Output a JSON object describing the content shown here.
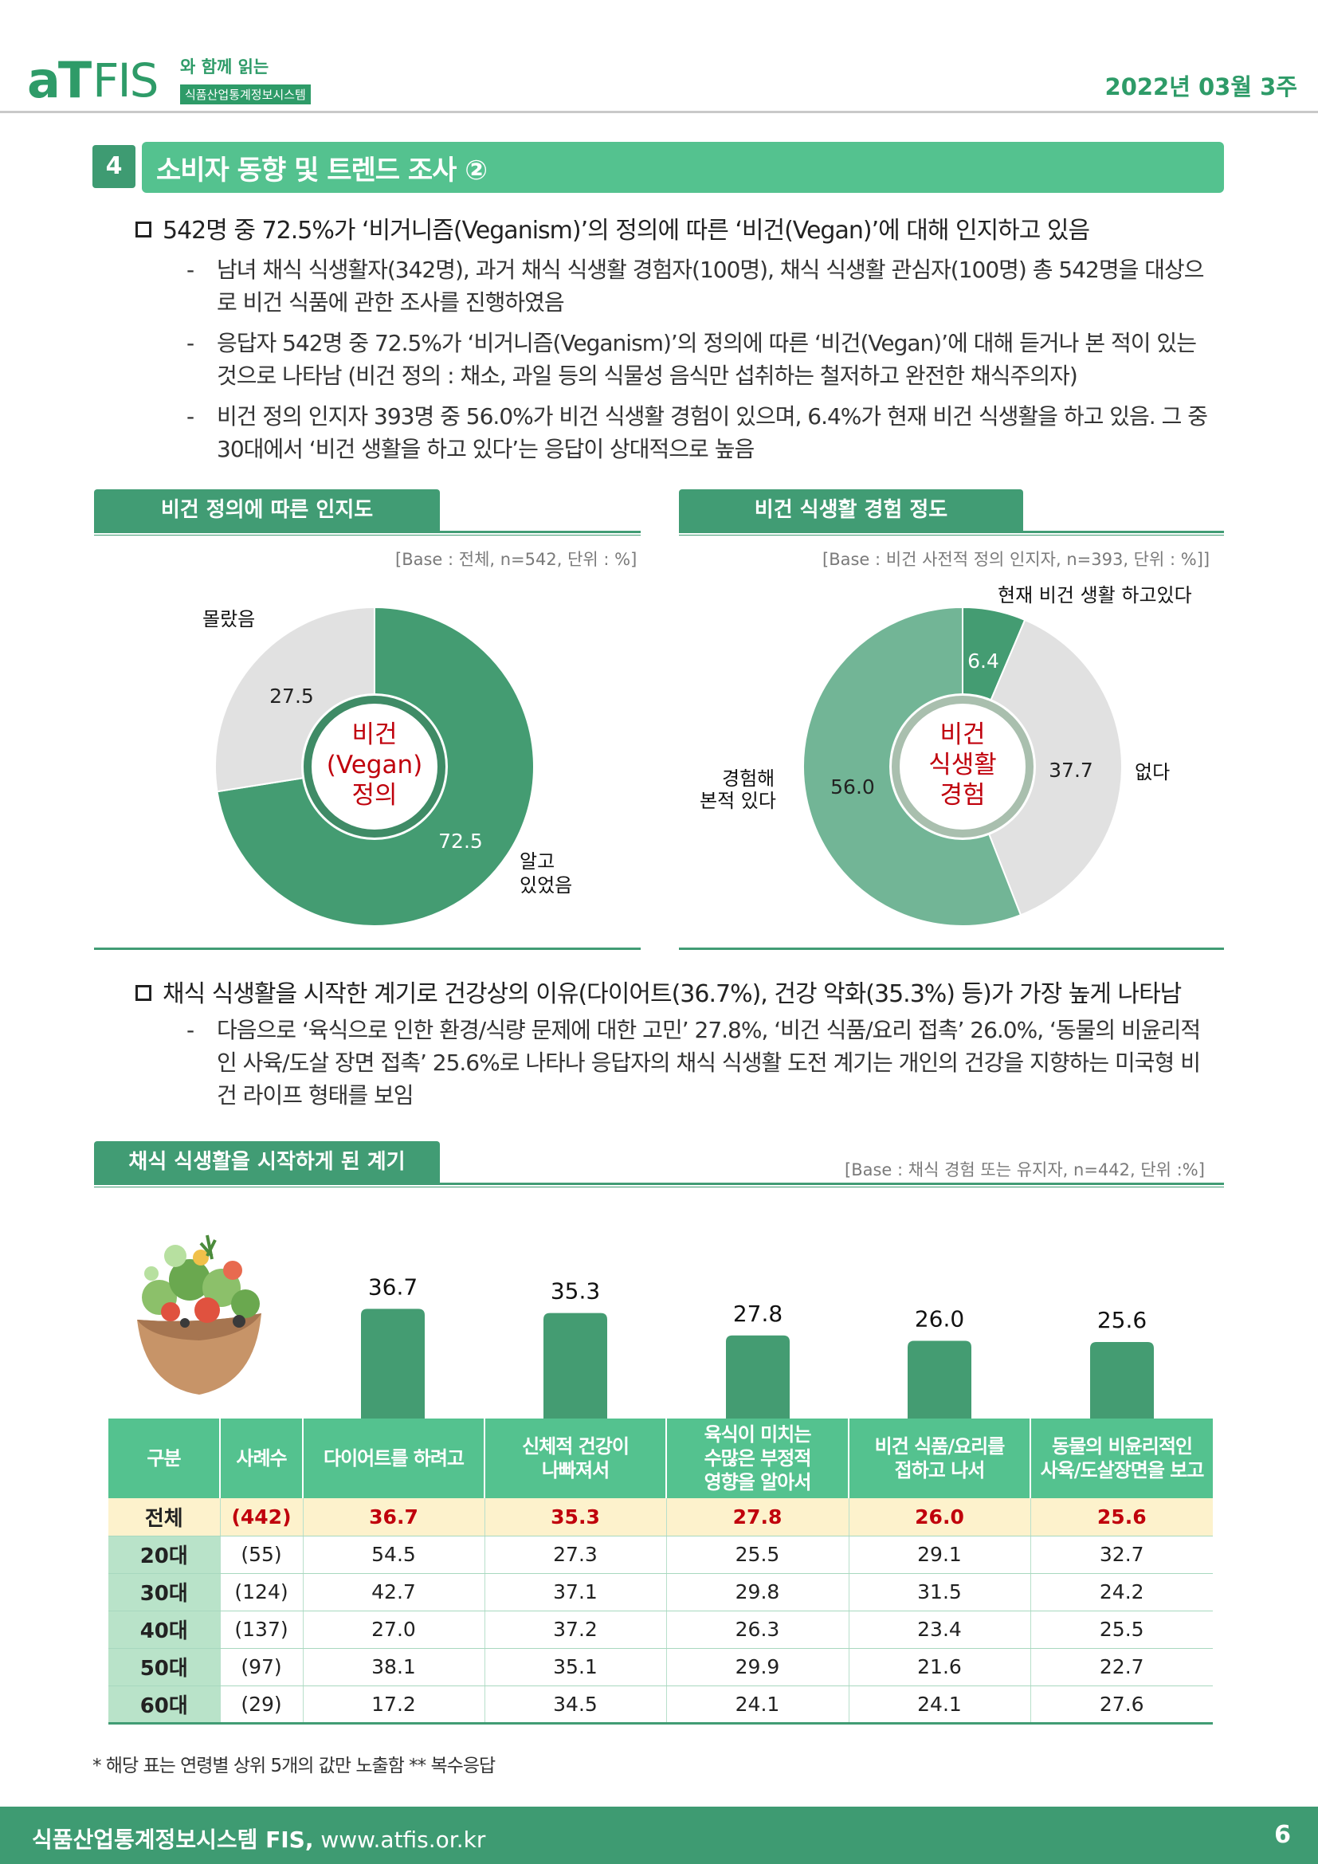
{
  "header": {
    "logo_main": "aT",
    "logo_fis": "FIS",
    "logo_with": "와 함께 읽는",
    "logo_subtitle": "식품산업통계정보시스템",
    "issue_date": "2022년 03월 3주"
  },
  "section": {
    "number": "4",
    "title": "소비자 동향 및 트렌드 조사 ②"
  },
  "bullet1": {
    "heading": "542명 중 72.5%가 ‘비거니즘(Veganism)’의 정의에 따른 ‘비건(Vegan)’에 대해 인지하고 있음",
    "items": [
      "남녀 채식 식생활자(342명), 과거 채식 식생활 경험자(100명), 채식 식생활 관심자(100명) 총 542명을 대상으로 비건 식품에 관한 조사를 진행하였음",
      "응답자 542명 중 72.5%가 ‘비거니즘(Veganism)’의 정의에 따른 ‘비건(Vegan)’에 대해 듣거나 본 적이 있는 것으로 나타남 (비건 정의 : 채소, 과일 등의 식물성 음식만 섭취하는 철저하고 완전한 채식주의자)",
      "비건 정의 인지자 393명 중 56.0%가 비건 식생활 경험이 있으며, 6.4%가 현재 비건 식생활을 하고 있음. 그 중 30대에서 ‘비건 생활을 하고 있다’는 응답이 상대적으로 높음"
    ]
  },
  "chart_left": {
    "tab": "비건 정의에 따른 인지도",
    "base": "[Base : 전체, n=542, 단위 : %]",
    "center_text": [
      "비건",
      "(Vegan)",
      "정의"
    ],
    "label_known_1": "알고",
    "label_known_2": "있었음",
    "label_unknown": "몰랐음"
  },
  "chart_right": {
    "tab": "비건 식생활 경험 정도",
    "base": "[Base : 비건 사전적 정의 인지자, n=393, 단위 : %]]",
    "center_text": [
      "비건",
      "식생활",
      "경험"
    ],
    "label_current": "현재 비건 생활 하고있다",
    "label_none": "없다",
    "label_experienced_1": "경험해",
    "label_experienced_2": "본적 있다"
  },
  "bullet2": {
    "heading": "채식 식생활을 시작한 계기로 건강상의 이유(다이어트(36.7%), 건강 악화(35.3%) 등)가 가장 높게 나타남",
    "items": [
      "다음으로 ‘육식으로 인한 환경/식량 문제에 대한 고민’ 27.8%, ‘비건 식품/요리 접촉’ 26.0%, ‘동물의 비윤리적인 사육/도살 장면 접촉’ 25.6%로 나타나 응답자의 채식 식생활 도전 계기는 개인의 건강을 지향하는 미국형 비건 라이프 형태를 보임"
    ]
  },
  "chart_bottom": {
    "tab": "채식 식생활을 시작하게 된 계기",
    "base": "[Base : 채식 경험 또는 유지자, n=442,  단위 :%]"
  },
  "table": {
    "headers": [
      "구분",
      "사례수",
      "다이어트를 하려고",
      "신체적 건강이\n나빠져서",
      "육식이 미치는\n수많은 부정적\n영향을 알아서",
      "비건 식품/요리를\n접하고 나서",
      "동물의 비윤리적인\n사육/도살장면을 보고"
    ],
    "rows": [
      [
        "전체",
        "(442)",
        "36.7",
        "35.3",
        "27.8",
        "26.0",
        "25.6"
      ],
      [
        "20대",
        "(55)",
        "54.5",
        "27.3",
        "25.5",
        "29.1",
        "32.7"
      ],
      [
        "30대",
        "(124)",
        "42.7",
        "37.1",
        "29.8",
        "31.5",
        "24.2"
      ],
      [
        "40대",
        "(137)",
        "27.0",
        "37.2",
        "26.3",
        "23.4",
        "25.5"
      ],
      [
        "50대",
        "(97)",
        "38.1",
        "35.1",
        "29.9",
        "21.6",
        "22.7"
      ],
      [
        "60대",
        "(29)",
        "17.2",
        "34.5",
        "24.1",
        "24.1",
        "27.6"
      ]
    ]
  },
  "footnote": "* 해당 표는 연령별 상위 5개의 값만 노출함  ** 복수응답",
  "footer": {
    "name": "식품산업통계정보시스템 FIS,",
    "url": "www.atfis.or.kr",
    "page": "6"
  },
  "colors": {
    "brand_green": "#3e9b72",
    "light_green": "#54c28f",
    "known": "#449c72",
    "gray": "#e1e1e1",
    "experienced": "#72b596",
    "accent_red": "#c0000c"
  },
  "chart_data": [
    {
      "type": "pie",
      "title": "비건 정의에 따른 인지도",
      "categories": [
        "알고 있었음",
        "몰랐음"
      ],
      "values": [
        72.5,
        27.5
      ]
    },
    {
      "type": "pie",
      "title": "비건 식생활 경험 정도",
      "categories": [
        "현재 비건 생활 하고있다",
        "없다",
        "경험해 본적 있다"
      ],
      "values": [
        6.4,
        37.7,
        56.0
      ]
    },
    {
      "type": "bar",
      "title": "채식 식생활을 시작하게 된 계기",
      "categories": [
        "다이어트를 하려고",
        "신체적 건강이 나빠져서",
        "육식이 미치는 수많은 부정적 영향을 알아서",
        "비건 식품/요리를 접하고 나서",
        "동물의 비윤리적인 사육/도살장면을 보고"
      ],
      "values": [
        36.7,
        35.3,
        27.8,
        26.0,
        25.6
      ]
    }
  ]
}
